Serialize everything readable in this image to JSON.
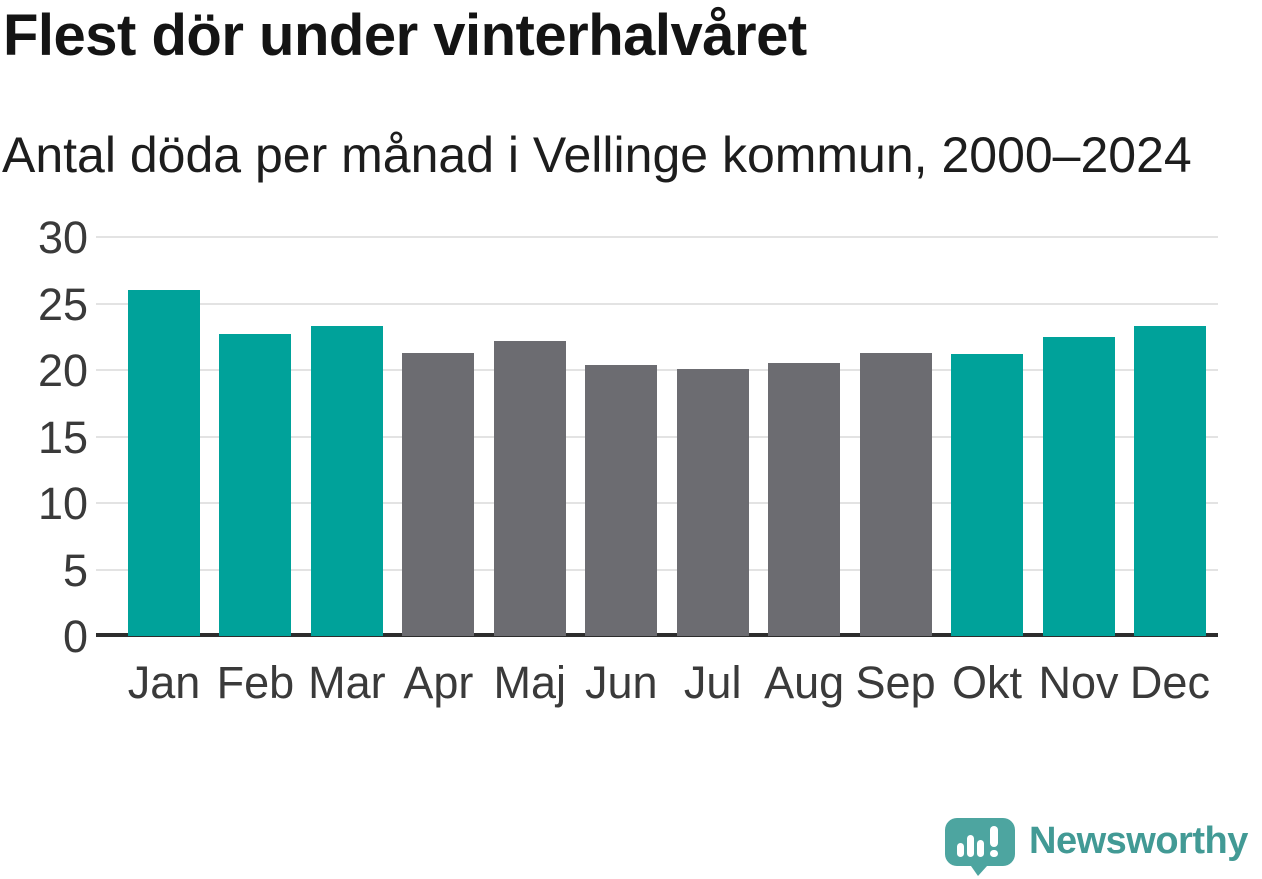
{
  "header": {
    "title": "Flest dör under vinterhalvåret",
    "subtitle": "Antal döda per månad i Vellinge kommun, 2000–2024"
  },
  "chart_data": {
    "type": "bar",
    "title": "Flest dör under vinterhalvåret",
    "subtitle": "Antal döda per månad i Vellinge kommun, 2000–2024",
    "categories": [
      "Jan",
      "Feb",
      "Mar",
      "Apr",
      "Maj",
      "Jun",
      "Jul",
      "Aug",
      "Sep",
      "Okt",
      "Nov",
      "Dec"
    ],
    "values": [
      26.0,
      22.7,
      23.3,
      21.3,
      22.2,
      20.4,
      20.1,
      20.5,
      21.3,
      21.2,
      22.5,
      23.3
    ],
    "bar_colors": [
      "#00a29a",
      "#00a29a",
      "#00a29a",
      "#6c6c71",
      "#6c6c71",
      "#6c6c71",
      "#6c6c71",
      "#6c6c71",
      "#6c6c71",
      "#00a29a",
      "#00a29a",
      "#00a29a"
    ],
    "highlight_color": "#00a29a",
    "muted_color": "#6c6c71",
    "xlabel": "",
    "ylabel": "",
    "ylim": [
      0,
      30
    ],
    "yticks": [
      0,
      5,
      10,
      15,
      20,
      25,
      30
    ],
    "grid": "horizontal",
    "legend": "none"
  },
  "footer": {
    "brand": "Newsworthy",
    "brand_color": "#429a95",
    "logo_bubble_color": "#4da5a0",
    "logo_icon": "newsworthy-speech-bubble-bar-chart-icon"
  }
}
